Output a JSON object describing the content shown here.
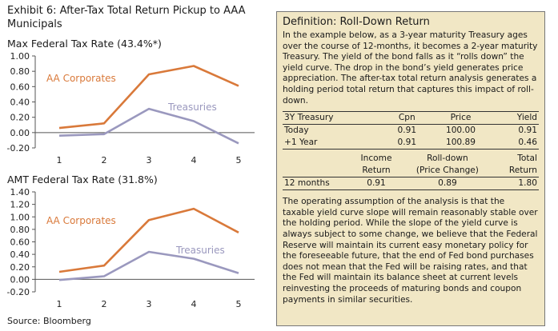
{
  "exhibit_title": "Exhibit 6: After-Tax Total Return Pickup to AAA Municipals",
  "source": "Source: Bloomberg",
  "colors": {
    "corporates": "#d9793a",
    "treasuries": "#9a98be",
    "box_bg": "#f1e7c5"
  },
  "chart_data": [
    {
      "type": "line",
      "title": "Max Federal Tax Rate (43.4%*)",
      "x": [
        1,
        2,
        3,
        4,
        5
      ],
      "ylim": [
        -0.2,
        1.0
      ],
      "yticks": [
        "1.00",
        "0.80",
        "0.60",
        "0.40",
        "0.20",
        "0.00",
        "-0.20"
      ],
      "grid": false,
      "series": [
        {
          "name": "AA Corporates",
          "values": [
            0.06,
            0.12,
            0.76,
            0.87,
            0.61
          ]
        },
        {
          "name": "Treasuries",
          "values": [
            -0.04,
            -0.02,
            0.31,
            0.15,
            -0.14
          ]
        }
      ]
    },
    {
      "type": "line",
      "title": "AMT Federal Tax Rate (31.8%)",
      "x": [
        1,
        2,
        3,
        4,
        5
      ],
      "ylim": [
        -0.2,
        1.4
      ],
      "yticks": [
        "1.40",
        "1.20",
        "1.00",
        "0.80",
        "0.60",
        "0.40",
        "0.20",
        "0.00",
        "-0.20"
      ],
      "grid": false,
      "series": [
        {
          "name": "AA Corporates",
          "values": [
            0.12,
            0.22,
            0.95,
            1.13,
            0.75
          ]
        },
        {
          "name": "Treasuries",
          "values": [
            -0.01,
            0.05,
            0.44,
            0.33,
            0.1
          ]
        }
      ]
    }
  ],
  "definition": {
    "title": "Definition: Roll-Down Return",
    "para1": "In the example below, as a 3-year maturity Treasury ages over the course of 12-months, it becomes a 2-year maturity Treasury.  The yield of the bond falls as it “rolls down” the yield curve.  The drop in the bond’s yield generates price appreciation.  The after-tax total return analysis generates a holding period total return that captures this impact of roll-down.",
    "table1": {
      "headers": [
        "3Y Treasury",
        "Cpn",
        "Price",
        "Yield"
      ],
      "rows": [
        [
          "Today",
          "0.91",
          "100.00",
          "0.91"
        ],
        [
          "+1 Year",
          "0.91",
          "100.89",
          "0.46"
        ]
      ]
    },
    "table2": {
      "headers_line1": [
        "",
        "Income",
        "Roll-down",
        "Total"
      ],
      "headers_line2": [
        "",
        "Return",
        "(Price Change)",
        "Return"
      ],
      "row": [
        "12 months",
        "0.91",
        "0.89",
        "1.80"
      ]
    },
    "para2": "The operating assumption of the analysis is that the taxable yield curve slope will remain reasonably stable over the holding period.  While the slope of the yield curve is always subject to some change, we believe that the Federal Reserve will maintain its current easy monetary policy for the foreseeable future, that the end of Fed bond purchases does not mean that the Fed will be raising rates, and that the Fed will maintain its balance sheet at current levels reinvesting the proceeds of maturing bonds and coupon payments in similar securities."
  }
}
